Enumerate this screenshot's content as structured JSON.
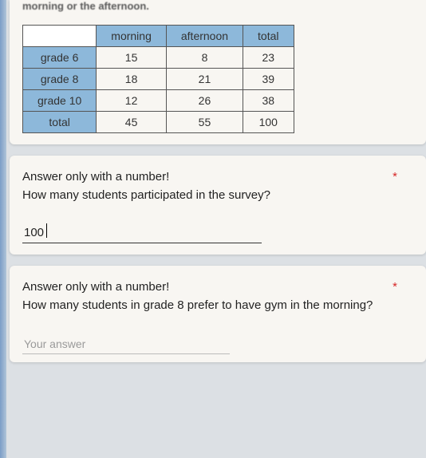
{
  "intro": "morning or the afternoon.",
  "table": {
    "columns": [
      "",
      "morning",
      "afternoon",
      "total"
    ],
    "rows": [
      {
        "label": "grade 6",
        "morning": "15",
        "afternoon": "8",
        "total": "23"
      },
      {
        "label": "grade 8",
        "morning": "18",
        "afternoon": "21",
        "total": "39"
      },
      {
        "label": "grade 10",
        "morning": "12",
        "afternoon": "26",
        "total": "38"
      },
      {
        "label": "total",
        "morning": "45",
        "afternoon": "55",
        "total": "100"
      }
    ],
    "header_bg": "#8db8da",
    "border_color": "#555555",
    "cell_bg": "#ffffff",
    "font_size": 14
  },
  "q1": {
    "hint": "Answer only with a number!",
    "required_mark": "*",
    "question": "How many students participated in the survey?",
    "value": "100"
  },
  "q2": {
    "hint": "Answer only with a number!",
    "required_mark": "*",
    "question": "How many students in grade 8 prefer to have gym in the morning?",
    "placeholder": "Your answer"
  },
  "colors": {
    "page_bg": "#dce0e4",
    "card_bg": "#f8f6f2",
    "accent": "#8db8da",
    "required": "#d62828"
  }
}
